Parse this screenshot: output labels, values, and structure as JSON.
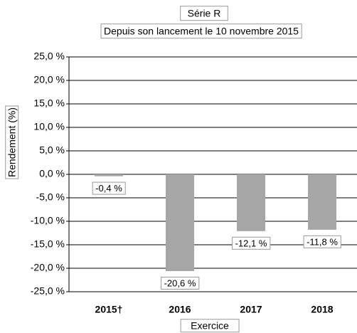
{
  "chart_data": {
    "type": "bar",
    "title": "Série R",
    "subtitle": "Depuis son lancement le 10 novembre 2015",
    "y_label": "Rendement (%)",
    "x_label": "Exercice",
    "categories": [
      "2015†",
      "2016",
      "2017",
      "2018"
    ],
    "values": [
      -0.4,
      -20.6,
      -12.1,
      -11.8
    ],
    "value_labels": [
      "-0,4 %",
      "-20,6 %",
      "-12,1 %",
      "-11,8 %"
    ],
    "color": "#a6a6a6",
    "ylim": [
      -25,
      25
    ],
    "yticks": [
      {
        "value": -25,
        "label": "-25,0 %"
      },
      {
        "value": -20,
        "label": "-20,0 %"
      },
      {
        "value": -15,
        "label": "-15,0 %"
      },
      {
        "value": -10,
        "label": "-10,0 %"
      },
      {
        "value": -5,
        "label": "-5,0 %"
      },
      {
        "value": 0,
        "label": "0,0 %"
      },
      {
        "value": 5,
        "label": "5,0 %"
      },
      {
        "value": 10,
        "label": "10,0 %"
      },
      {
        "value": 15,
        "label": "15,0 %"
      },
      {
        "value": 20,
        "label": "20,0 %"
      },
      {
        "value": 25,
        "label": "25,0 %"
      }
    ],
    "grid": true
  }
}
